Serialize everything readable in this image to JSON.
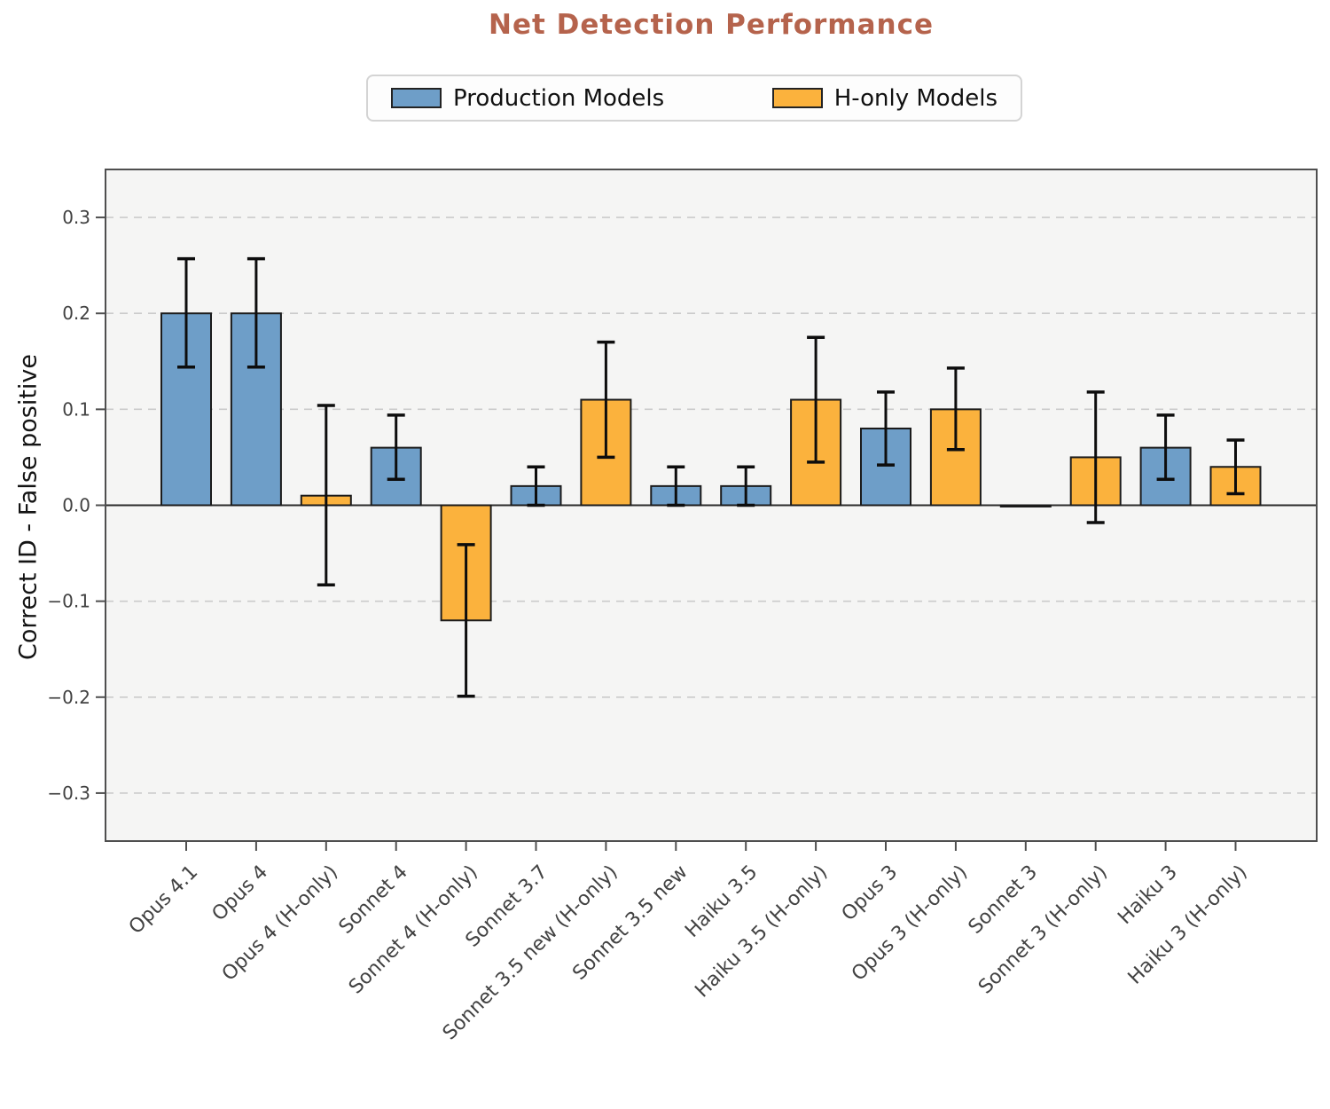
{
  "chart_data": {
    "type": "bar",
    "title": "Net Detection Performance",
    "ylabel": "Correct ID - False positive",
    "ylim": [
      -0.35,
      0.35
    ],
    "grid": "horizontal dashed at ±0.1, ±0.2, ±0.3; solid line at 0",
    "legend_position": "top center, outside axes",
    "yticks": [
      {
        "v": 0.3,
        "label": "0.3"
      },
      {
        "v": 0.2,
        "label": "0.2"
      },
      {
        "v": 0.1,
        "label": "0.1"
      },
      {
        "v": 0.0,
        "label": "0.0"
      },
      {
        "v": -0.1,
        "label": "−0.1"
      },
      {
        "v": -0.2,
        "label": "−0.2"
      },
      {
        "v": -0.3,
        "label": "−0.3"
      }
    ],
    "legend": [
      {
        "label": "Production Models",
        "color": "#6E9EC8"
      },
      {
        "label": "H-only Models",
        "color": "#FBB23D"
      }
    ],
    "bars": [
      {
        "label": "Opus 4.1",
        "series": 0,
        "value": 0.2,
        "ci_low": 0.144,
        "ci_high": 0.257
      },
      {
        "label": "Opus 4",
        "series": 0,
        "value": 0.2,
        "ci_low": 0.144,
        "ci_high": 0.257
      },
      {
        "label": "Opus 4 (H-only)",
        "series": 1,
        "value": 0.01,
        "ci_low": -0.083,
        "ci_high": 0.104
      },
      {
        "label": "Sonnet 4",
        "series": 0,
        "value": 0.06,
        "ci_low": 0.027,
        "ci_high": 0.094
      },
      {
        "label": "Sonnet 4 (H-only)",
        "series": 1,
        "value": -0.12,
        "ci_low": -0.199,
        "ci_high": -0.041
      },
      {
        "label": "Sonnet 3.7",
        "series": 0,
        "value": 0.02,
        "ci_low": 0.0,
        "ci_high": 0.04
      },
      {
        "label": "Sonnet 3.5 new (H-only)",
        "series": 1,
        "value": 0.11,
        "ci_low": 0.05,
        "ci_high": 0.17
      },
      {
        "label": "Sonnet 3.5 new",
        "series": 0,
        "value": 0.02,
        "ci_low": 0.0,
        "ci_high": 0.04
      },
      {
        "label": "Haiku 3.5",
        "series": 0,
        "value": 0.02,
        "ci_low": 0.0,
        "ci_high": 0.04
      },
      {
        "label": "Haiku 3.5 (H-only)",
        "series": 1,
        "value": 0.11,
        "ci_low": 0.045,
        "ci_high": 0.175
      },
      {
        "label": "Opus 3",
        "series": 0,
        "value": 0.08,
        "ci_low": 0.042,
        "ci_high": 0.118
      },
      {
        "label": "Opus 3 (H-only)",
        "series": 1,
        "value": 0.1,
        "ci_low": 0.058,
        "ci_high": 0.143
      },
      {
        "label": "Sonnet 3",
        "series": 0,
        "value": 0.0,
        "ci_low": null,
        "ci_high": null
      },
      {
        "label": "Sonnet 3 (H-only)",
        "series": 1,
        "value": 0.05,
        "ci_low": -0.018,
        "ci_high": 0.118
      },
      {
        "label": "Haiku 3",
        "series": 0,
        "value": 0.06,
        "ci_low": 0.027,
        "ci_high": 0.094
      },
      {
        "label": "Haiku 3 (H-only)",
        "series": 1,
        "value": 0.04,
        "ci_low": 0.012,
        "ci_high": 0.068
      }
    ],
    "colors": {
      "title": "#B5634C",
      "bar_edge": "#1B1B1B",
      "error_bar": "#0D0D0D",
      "plot_bg": "#F5F5F4",
      "grid": "#CBCBCB",
      "zero_line": "#2A2A2A",
      "spine": "#4F4F4F",
      "tick_label": "#424242",
      "legend_text": "#111111"
    }
  }
}
